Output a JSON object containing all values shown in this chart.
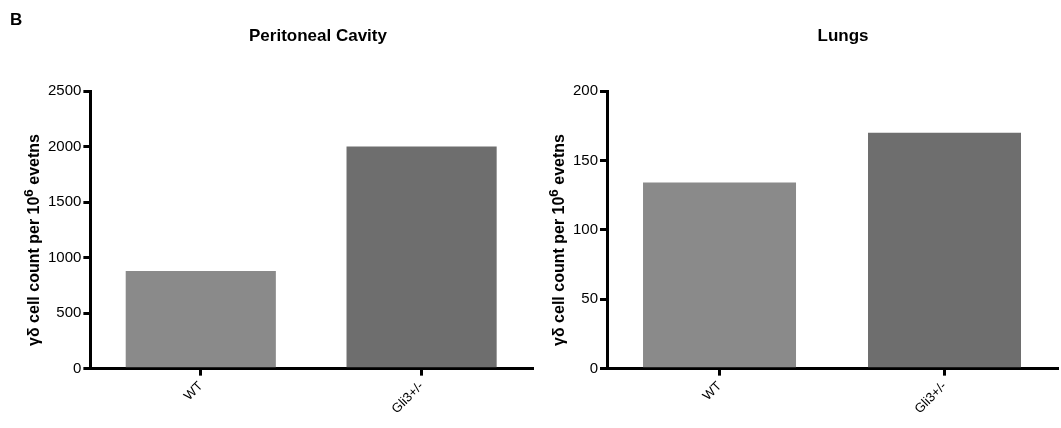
{
  "chart_data": [
    {
      "type": "bar",
      "title": "Peritoneal Cavity",
      "ylabel": "γδ cell count per 10$^{6}$ evetns",
      "annotations": [
        "B"
      ],
      "categories": [
        "WT",
        "Gli3+/-"
      ],
      "values": [
        880,
        2000
      ],
      "colors": [
        "#8a8a8a",
        "#6e6e6e"
      ],
      "ylim": [
        0,
        2500
      ],
      "yticks": [
        0,
        500,
        1000,
        1500,
        2000,
        2500
      ],
      "grid": false,
      "legend": false
    },
    {
      "type": "bar",
      "title": "Lungs",
      "ylabel": "γδ cell count per 10$^{6}$ evetns",
      "categories": [
        "WT",
        "Gli3+/-"
      ],
      "values": [
        134,
        170
      ],
      "colors": [
        "#8a8a8a",
        "#6e6e6e"
      ],
      "ylim": [
        0,
        200
      ],
      "yticks": [
        0,
        50,
        100,
        150,
        200
      ],
      "grid": false,
      "legend": false
    }
  ]
}
